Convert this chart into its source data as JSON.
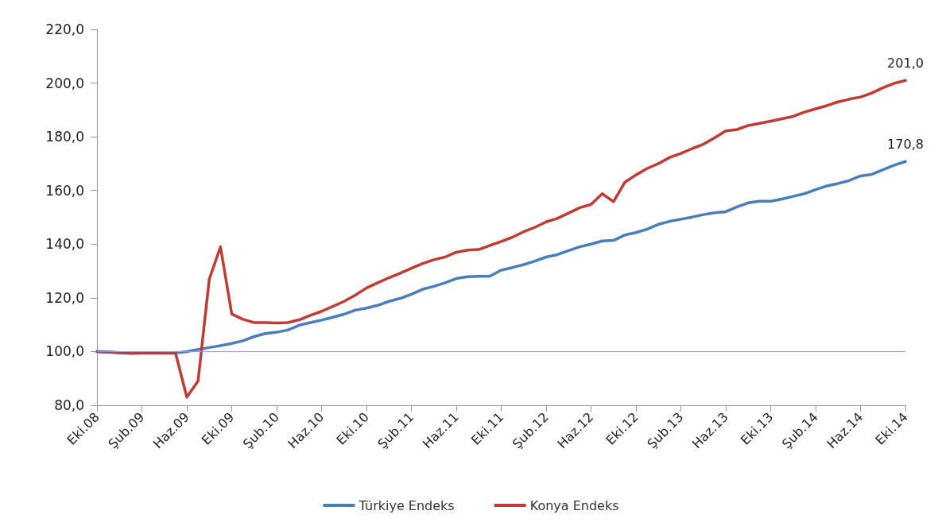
{
  "chart_data": {
    "type": "line",
    "categories": [
      "Eki.08",
      null,
      null,
      null,
      "Şub.09",
      null,
      null,
      null,
      "Haz.09",
      null,
      null,
      null,
      "Eki.09",
      null,
      null,
      null,
      "Şub.10",
      null,
      null,
      null,
      "Haz.10",
      null,
      null,
      null,
      "Eki.10",
      null,
      null,
      null,
      "Şub.11",
      null,
      null,
      null,
      "Haz.11",
      null,
      null,
      null,
      "Eki.11",
      null,
      null,
      null,
      "Şub.12",
      null,
      null,
      null,
      "Haz.12",
      null,
      null,
      null,
      "Eki.12",
      null,
      null,
      null,
      "Şub.13",
      null,
      null,
      null,
      "Haz.13",
      null,
      null,
      null,
      "Eki.13",
      null,
      null,
      null,
      "Şub.14",
      null,
      null,
      null,
      "Haz.14",
      null,
      null,
      null,
      "Eki.14"
    ],
    "series": [
      {
        "name": "Türkiye Endeks",
        "color": "#4a7ebb",
        "values": [
          100.0,
          99.8,
          99.6,
          99.5,
          99.5,
          99.5,
          99.5,
          99.5,
          100.0,
          100.8,
          101.5,
          102.2,
          103.0,
          104.0,
          105.6,
          106.7,
          107.2,
          108.0,
          109.8,
          110.8,
          111.7,
          112.8,
          113.9,
          115.4,
          116.2,
          117.2,
          118.7,
          119.8,
          121.3,
          123.2,
          124.3,
          125.6,
          127.2,
          127.9,
          128.0,
          128.1,
          130.3,
          131.3,
          132.4,
          133.7,
          135.2,
          136.1,
          137.6,
          139.0,
          140.0,
          141.2,
          141.4,
          143.4,
          144.3,
          145.6,
          147.4,
          148.5,
          149.3,
          150.1,
          151.0,
          151.7,
          152.1,
          153.9,
          155.4,
          156.0,
          156.0,
          156.8,
          157.8,
          158.8,
          160.3,
          161.7,
          162.6,
          163.7,
          165.4,
          166.0,
          167.7,
          169.4,
          170.8
        ],
        "value_labels": [
          null,
          null,
          null,
          null,
          null,
          null,
          null,
          null,
          null,
          null,
          null,
          null,
          null,
          null,
          null,
          null,
          null,
          null,
          null,
          null,
          null,
          null,
          null,
          null,
          null,
          null,
          null,
          null,
          null,
          null,
          null,
          null,
          null,
          null,
          null,
          null,
          null,
          null,
          null,
          null,
          null,
          null,
          null,
          null,
          null,
          null,
          null,
          null,
          null,
          null,
          null,
          null,
          null,
          null,
          null,
          null,
          null,
          null,
          null,
          null,
          null,
          null,
          null,
          null,
          null,
          null,
          null,
          null,
          null,
          null,
          null,
          null,
          "170,8"
        ]
      },
      {
        "name": "Konya Endeks",
        "color": "#be3b36",
        "values": [
          100.0,
          99.8,
          99.5,
          99.3,
          99.4,
          99.4,
          99.4,
          99.4,
          83.0,
          89.0,
          127.0,
          139.0,
          114.0,
          112.0,
          110.8,
          110.8,
          110.6,
          110.8,
          111.8,
          113.5,
          115.0,
          116.8,
          118.7,
          121.0,
          123.7,
          125.6,
          127.5,
          129.2,
          131.0,
          132.8,
          134.2,
          135.2,
          137.0,
          137.8,
          138.0,
          139.5,
          141.0,
          142.6,
          144.6,
          146.3,
          148.3,
          149.6,
          151.6,
          153.6,
          154.8,
          158.8,
          155.8,
          163.0,
          165.8,
          168.2,
          170.0,
          172.3,
          173.8,
          175.6,
          177.2,
          179.6,
          182.2,
          182.7,
          184.2,
          185.0,
          185.8,
          186.7,
          187.6,
          189.2,
          190.4,
          191.6,
          193.0,
          194.0,
          194.8,
          196.3,
          198.3,
          199.9,
          201.0
        ],
        "value_labels": [
          null,
          null,
          null,
          null,
          null,
          null,
          null,
          null,
          null,
          null,
          null,
          null,
          null,
          null,
          null,
          null,
          null,
          null,
          null,
          null,
          null,
          null,
          null,
          null,
          null,
          null,
          null,
          null,
          null,
          null,
          null,
          null,
          null,
          null,
          null,
          null,
          null,
          null,
          null,
          null,
          null,
          null,
          null,
          null,
          null,
          null,
          null,
          null,
          null,
          null,
          null,
          null,
          null,
          null,
          null,
          null,
          null,
          null,
          null,
          null,
          null,
          null,
          null,
          null,
          null,
          null,
          null,
          null,
          null,
          null,
          null,
          null,
          "201,0"
        ]
      }
    ],
    "ylim": [
      80,
      220
    ],
    "yticks": [
      {
        "value": 80,
        "label": "80,0"
      },
      {
        "value": 100,
        "label": "100,0"
      },
      {
        "value": 120,
        "label": "120,0"
      },
      {
        "value": 140,
        "label": "140,0"
      },
      {
        "value": 160,
        "label": "160,0"
      },
      {
        "value": 180,
        "label": "180,0"
      },
      {
        "value": 200,
        "label": "200,0"
      },
      {
        "value": 220,
        "label": "220,0"
      }
    ],
    "ref_lines": [
      {
        "axis": "y",
        "value": 100,
        "color": "#9999dd"
      }
    ],
    "grid": false,
    "legend": "bottom",
    "marker": "none",
    "line_style": "solid"
  }
}
